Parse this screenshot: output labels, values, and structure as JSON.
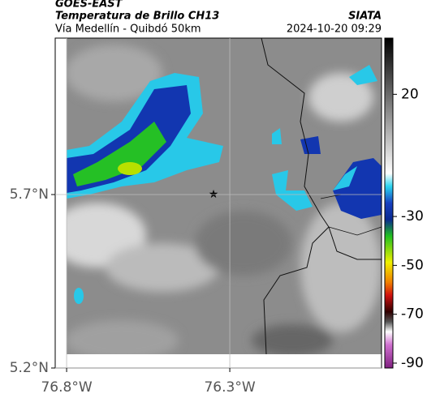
{
  "header": {
    "satellite": "GOES-EAST",
    "product": "Temperatura de Brillo CH13",
    "source": "SIATA",
    "route": "Vía Medellín - Quibdó 50km",
    "timestamp": "2024-10-20 09:29"
  },
  "map": {
    "lon_range": [
      -76.835,
      -75.835
    ],
    "lat_range": [
      5.2,
      6.151
    ],
    "lat_ticks": [
      {
        "value": 5.7,
        "label": "5.7°N"
      },
      {
        "value": 5.2,
        "label": "5.2°N"
      }
    ],
    "lon_ticks": [
      {
        "value": -76.8,
        "label": "76.8°W"
      },
      {
        "value": -76.3,
        "label": "76.3°W"
      }
    ]
  },
  "colorbar": {
    "range": [
      -92,
      43
    ],
    "ticks": [
      20,
      -30,
      -50,
      -70,
      -90
    ]
  }
}
